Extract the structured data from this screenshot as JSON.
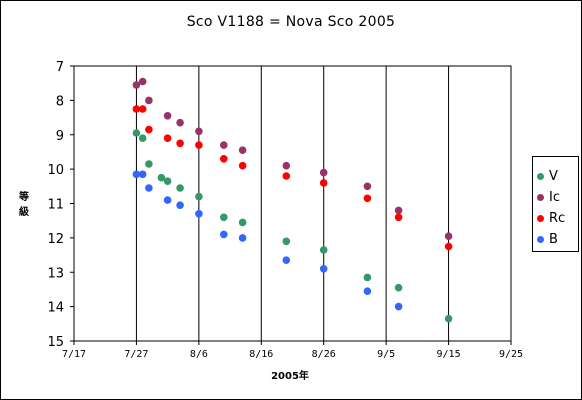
{
  "chart_data": {
    "type": "scatter",
    "title": "Sco V1188 = Nova Sco 2005",
    "xlabel": "2005年",
    "ylabel": "等級",
    "x_ticks": [
      "7/17",
      "7/27",
      "8/6",
      "8/16",
      "8/26",
      "9/5",
      "9/15",
      "9/25"
    ],
    "xlim": [
      "2005-07-17",
      "2005-09-25"
    ],
    "y_ticks": [
      7,
      8,
      9,
      10,
      11,
      12,
      13,
      14,
      15
    ],
    "ylim": [
      7,
      15
    ],
    "y_inverted": true,
    "grid": "vertical",
    "legend_position": "right",
    "series": [
      {
        "name": "V",
        "color": "#339966",
        "points": [
          [
            "2005-07-27",
            8.95
          ],
          [
            "2005-07-28",
            9.1
          ],
          [
            "2005-07-29",
            9.85
          ],
          [
            "2005-07-31",
            10.25
          ],
          [
            "2005-08-01",
            10.35
          ],
          [
            "2005-08-03",
            10.55
          ],
          [
            "2005-08-06",
            10.8
          ],
          [
            "2005-08-10",
            11.4
          ],
          [
            "2005-08-13",
            11.55
          ],
          [
            "2005-08-20",
            12.1
          ],
          [
            "2005-08-26",
            12.35
          ],
          [
            "2005-09-02",
            13.15
          ],
          [
            "2005-09-07",
            13.45
          ],
          [
            "2005-09-15",
            14.35
          ]
        ]
      },
      {
        "name": "Ic",
        "color": "#993366",
        "points": [
          [
            "2005-07-27",
            7.55
          ],
          [
            "2005-07-28",
            7.45
          ],
          [
            "2005-07-29",
            8.0
          ],
          [
            "2005-08-01",
            8.45
          ],
          [
            "2005-08-03",
            8.65
          ],
          [
            "2005-08-06",
            8.9
          ],
          [
            "2005-08-10",
            9.3
          ],
          [
            "2005-08-13",
            9.45
          ],
          [
            "2005-08-20",
            9.9
          ],
          [
            "2005-08-26",
            10.1
          ],
          [
            "2005-09-02",
            10.5
          ],
          [
            "2005-09-07",
            11.2
          ],
          [
            "2005-09-15",
            11.95
          ]
        ]
      },
      {
        "name": "Rc",
        "color": "#ff0000",
        "points": [
          [
            "2005-07-27",
            8.25
          ],
          [
            "2005-07-28",
            8.25
          ],
          [
            "2005-07-29",
            8.85
          ],
          [
            "2005-08-01",
            9.1
          ],
          [
            "2005-08-03",
            9.25
          ],
          [
            "2005-08-06",
            9.3
          ],
          [
            "2005-08-10",
            9.7
          ],
          [
            "2005-08-13",
            9.9
          ],
          [
            "2005-08-20",
            10.2
          ],
          [
            "2005-08-26",
            10.4
          ],
          [
            "2005-09-02",
            10.85
          ],
          [
            "2005-09-07",
            11.4
          ],
          [
            "2005-09-15",
            12.25
          ]
        ]
      },
      {
        "name": "B",
        "color": "#3366ff",
        "points": [
          [
            "2005-07-27",
            10.15
          ],
          [
            "2005-07-28",
            10.15
          ],
          [
            "2005-07-29",
            10.55
          ],
          [
            "2005-08-01",
            10.9
          ],
          [
            "2005-08-03",
            11.05
          ],
          [
            "2005-08-06",
            11.3
          ],
          [
            "2005-08-10",
            11.9
          ],
          [
            "2005-08-13",
            12.0
          ],
          [
            "2005-08-20",
            12.65
          ],
          [
            "2005-08-26",
            12.9
          ],
          [
            "2005-09-02",
            13.55
          ],
          [
            "2005-09-07",
            14.0
          ]
        ]
      }
    ]
  }
}
